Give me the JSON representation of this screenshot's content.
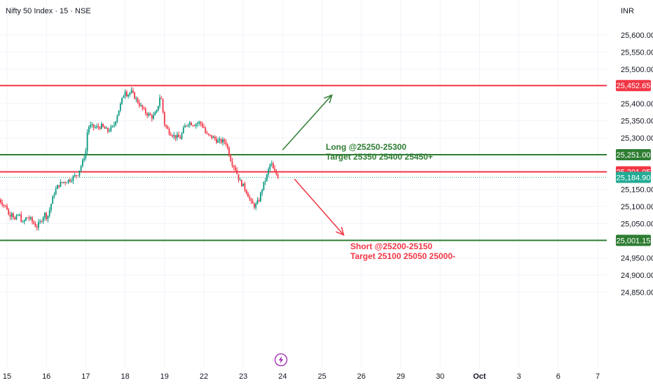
{
  "header": {
    "title": "Nifty 50 Index · 15 · NSE",
    "currency": "INR"
  },
  "chart_data": {
    "type": "candlestick",
    "grid": true,
    "ylim": [
      24820,
      25660
    ],
    "y_ticks": [
      {
        "value": 25600,
        "label": "25,600.00"
      },
      {
        "value": 25550,
        "label": "25,550.00"
      },
      {
        "value": 25500,
        "label": "25,500.00"
      },
      {
        "value": 25400,
        "label": "25,400.00"
      },
      {
        "value": 25350,
        "label": "25,350.00"
      },
      {
        "value": 25300,
        "label": "25,300.00"
      },
      {
        "value": 25150,
        "label": "25,150.00"
      },
      {
        "value": 25100,
        "label": "25,100.00"
      },
      {
        "value": 25050,
        "label": "25,050.00"
      },
      {
        "value": 24950,
        "label": "24,950.00"
      },
      {
        "value": 24900,
        "label": "24,900.00"
      },
      {
        "value": 24850,
        "label": "24,850.00"
      }
    ],
    "x_ticks": [
      {
        "session": 0,
        "label": "15"
      },
      {
        "session": 1,
        "label": "16"
      },
      {
        "session": 2,
        "label": "17"
      },
      {
        "session": 3,
        "label": "18"
      },
      {
        "session": 4,
        "label": "19"
      },
      {
        "session": 5,
        "label": "22"
      },
      {
        "session": 6,
        "label": "23"
      },
      {
        "session": 7,
        "label": "24"
      },
      {
        "session": 8,
        "label": "25"
      },
      {
        "session": 9,
        "label": "26"
      },
      {
        "session": 10,
        "label": "29"
      },
      {
        "session": 11,
        "label": "30"
      },
      {
        "session": 12,
        "label": "Oct",
        "bold": true
      },
      {
        "session": 13,
        "label": "3"
      },
      {
        "session": 14,
        "label": "6"
      },
      {
        "session": 15,
        "label": "7"
      }
    ],
    "levels": [
      {
        "value": 25452.65,
        "label": "25,452.65",
        "color": "#f23645"
      },
      {
        "value": 25251.0,
        "label": "25,251.00",
        "color": "#2e7d32"
      },
      {
        "value": 25201.05,
        "label": "25,201.05",
        "color": "#f23645"
      },
      {
        "value": 25001.15,
        "label": "25,001.15",
        "color": "#2e7d32"
      }
    ],
    "current_price": {
      "value": 25184.9,
      "label": "25,184.90",
      "color": "#22ab94"
    },
    "close_path": [
      [
        -0.2,
        25120
      ],
      [
        0.0,
        25095
      ],
      [
        0.05,
        25070
      ],
      [
        0.12,
        25085
      ],
      [
        0.2,
        25060
      ],
      [
        0.3,
        25078
      ],
      [
        0.4,
        25050
      ],
      [
        0.5,
        25070
      ],
      [
        0.6,
        25062
      ],
      [
        0.75,
        25040
      ],
      [
        0.85,
        25055
      ],
      [
        0.95,
        25080
      ],
      [
        1.0,
        25070
      ],
      [
        1.05,
        25075
      ],
      [
        1.1,
        25100
      ],
      [
        1.2,
        25140
      ],
      [
        1.3,
        25162
      ],
      [
        1.4,
        25170
      ],
      [
        1.55,
        25176
      ],
      [
        1.65,
        25182
      ],
      [
        1.8,
        25196
      ],
      [
        1.92,
        25230
      ],
      [
        2.0,
        25262
      ],
      [
        2.05,
        25330
      ],
      [
        2.1,
        25335
      ],
      [
        2.25,
        25330
      ],
      [
        2.4,
        25334
      ],
      [
        2.55,
        25320
      ],
      [
        2.7,
        25332
      ],
      [
        3.0,
        25440
      ],
      [
        3.05,
        25425
      ],
      [
        3.15,
        25435
      ],
      [
        3.25,
        25418
      ],
      [
        3.35,
        25400
      ],
      [
        3.5,
        25375
      ],
      [
        3.7,
        25360
      ],
      [
        3.8,
        25375
      ],
      [
        3.9,
        25430
      ],
      [
        4.0,
        25340
      ],
      [
        4.1,
        25320
      ],
      [
        4.25,
        25305
      ],
      [
        4.4,
        25300
      ],
      [
        4.5,
        25330
      ],
      [
        4.6,
        25345
      ],
      [
        4.75,
        25340
      ],
      [
        4.9,
        25345
      ],
      [
        5.0,
        25330
      ],
      [
        5.05,
        25310
      ],
      [
        5.15,
        25305
      ],
      [
        5.25,
        25300
      ],
      [
        5.35,
        25290
      ],
      [
        5.45,
        25290
      ],
      [
        5.55,
        25290
      ],
      [
        5.7,
        25230
      ],
      [
        5.8,
        25210
      ],
      [
        5.9,
        25175
      ],
      [
        6.0,
        25160
      ],
      [
        6.1,
        25140
      ],
      [
        6.2,
        25110
      ],
      [
        6.3,
        25100
      ],
      [
        6.4,
        25120
      ],
      [
        6.5,
        25160
      ],
      [
        6.6,
        25190
      ],
      [
        6.7,
        25230
      ],
      [
        6.75,
        25210
      ],
      [
        6.8,
        25200
      ],
      [
        6.9,
        25184.9
      ]
    ],
    "annotations": [
      {
        "type": "long",
        "color": "#2e7d32",
        "lines": [
          "Long @25250-25300",
          "Target 25350 25400 25450+"
        ],
        "arrow": {
          "from": [
            7.0,
            25265
          ],
          "to": [
            8.25,
            25425
          ]
        }
      },
      {
        "type": "short",
        "color": "#f23645",
        "lines": [
          "Short @25200-25150",
          "Target 25100 25050 25000-"
        ],
        "arrow": {
          "from": [
            7.3,
            25180
          ],
          "to": [
            8.55,
            25017
          ]
        }
      }
    ]
  },
  "event_marker_icon": "lightning-icon"
}
